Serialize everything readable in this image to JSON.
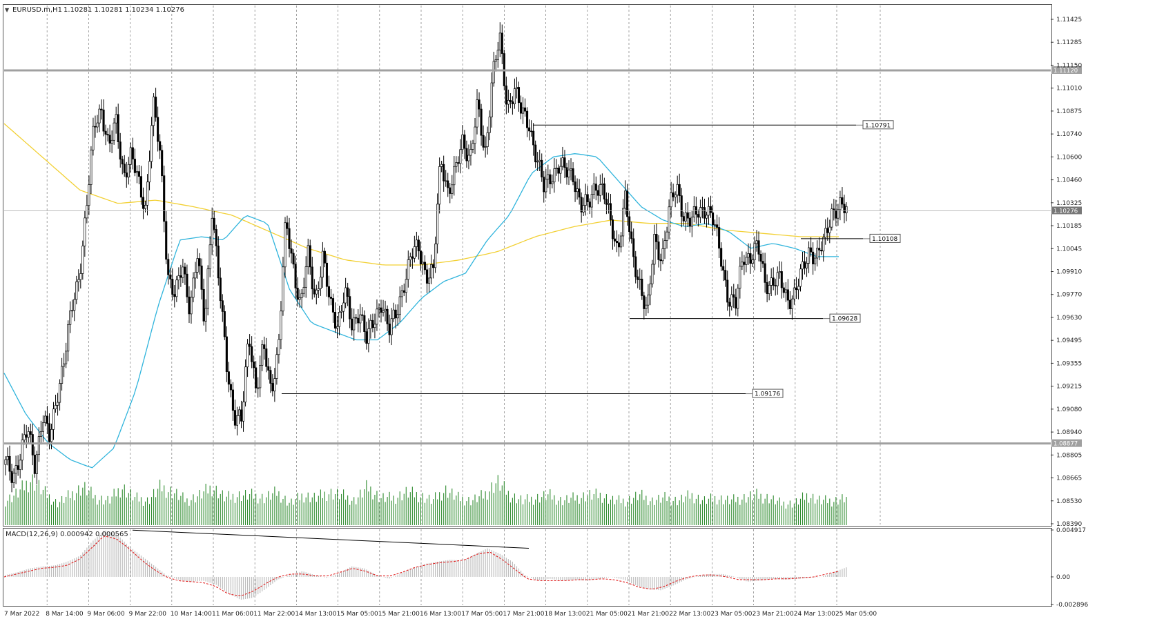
{
  "window": {
    "symbol_header": "EURUSD.m,H1",
    "ohlc_header": "1.10281 1.10281 1.10234 1.10276",
    "dropdown_glyph": "▼"
  },
  "colors": {
    "candles": "#000000",
    "ma_fast": "#2fb4dc",
    "ma_slow": "#f2d033",
    "volume": "#2e8b2e",
    "macd_hist": "#bdbdbd",
    "macd_signal": "#e02020",
    "grid": "#8a8a8a",
    "hline_gray": "#a0a0a0"
  },
  "chart_data": {
    "type": "candlestick",
    "price_axis_ticks": [
      "1.11425",
      "1.11285",
      "1.11150",
      "1.11010",
      "1.10875",
      "1.10740",
      "1.10600",
      "1.10460",
      "1.10325",
      "1.10185",
      "1.10045",
      "1.09910",
      "1.09770",
      "1.09630",
      "1.09495",
      "1.09355",
      "1.09215",
      "1.09080",
      "1.08940",
      "1.08805",
      "1.08665",
      "1.08530",
      "1.08390"
    ],
    "ylim": [
      1.0839,
      1.1151
    ],
    "macd_axis_ticks": [
      "0.004917",
      "0.00",
      "-0.002896"
    ],
    "macd_ylim": [
      -0.002896,
      0.004917
    ],
    "x_labels": [
      "7 Mar 2022",
      "8 Mar 14:00",
      "9 Mar 06:00",
      "9 Mar 22:00",
      "10 Mar 14:00",
      "11 Mar 06:00",
      "11 Mar 22:00",
      "14 Mar 13:00",
      "15 Mar 05:00",
      "15 Mar 21:00",
      "16 Mar 13:00",
      "17 Mar 05:00",
      "17 Mar 21:00",
      "18 Mar 13:00",
      "21 Mar 05:00",
      "21 Mar 21:00",
      "22 Mar 13:00",
      "23 Mar 05:00",
      "23 Mar 21:00",
      "24 Mar 13:00",
      "25 Mar 05:00"
    ],
    "price_path": [
      1.0875,
      1.0868,
      1.0882,
      1.0895,
      1.0875,
      1.0905,
      1.0889,
      1.0918,
      1.094,
      1.0968,
      1.099,
      1.103,
      1.1078,
      1.109,
      1.1065,
      1.108,
      1.105,
      1.106,
      1.1045,
      1.103,
      1.1092,
      1.106,
      1.099,
      1.0975,
      1.0995,
      1.097,
      1.1,
      1.096,
      1.103,
      1.098,
      1.0935,
      1.0905,
      1.09,
      1.0955,
      1.092,
      1.0945,
      1.092,
      1.0945,
      1.102,
      1.0995,
      1.097,
      1.1,
      1.0975,
      1.1,
      1.097,
      1.096,
      1.098,
      1.0955,
      1.097,
      1.095,
      1.096,
      1.0975,
      1.0955,
      1.0965,
      1.0985,
      1.1,
      1.1005,
      1.099,
      1.099,
      1.106,
      1.104,
      1.105,
      1.107,
      1.106,
      1.109,
      1.106,
      1.111,
      1.113,
      1.109,
      1.1102,
      1.1085,
      1.108,
      1.106,
      1.104,
      1.105,
      1.1055,
      1.105,
      1.105,
      1.103,
      1.103,
      1.1045,
      1.104,
      1.102,
      1.1005,
      1.1035,
      1.1,
      1.0985,
      1.0965,
      1.101,
      1.1,
      1.1028,
      1.1042,
      1.1025,
      1.102,
      1.1028,
      1.103,
      1.102,
      1.1,
      1.0975,
      1.097,
      1.1002,
      1.1,
      1.1005,
      1.0985,
      1.0985,
      1.0985,
      1.0975,
      1.0978,
      1.099,
      1.1005,
      1.1,
      1.1008,
      1.1028,
      1.103,
      1.1027
    ],
    "ma_fast_path": [
      1.093,
      1.0905,
      1.0888,
      1.0878,
      1.0873,
      1.0885,
      1.092,
      1.097,
      1.101,
      1.1012,
      1.101,
      1.1025,
      1.102,
      1.098,
      1.096,
      1.0955,
      1.095,
      1.095,
      1.096,
      1.0975,
      1.0985,
      1.099,
      1.101,
      1.1025,
      1.105,
      1.106,
      1.1062,
      1.106,
      1.1045,
      1.103,
      1.1022,
      1.1018,
      1.102,
      1.1015,
      1.1005,
      1.1008,
      1.1005,
      1.1,
      1.1
    ],
    "ma_slow_path": [
      1.108,
      1.106,
      1.104,
      1.1032,
      1.1034,
      1.103,
      1.1025,
      1.1015,
      1.1005,
      1.0998,
      1.0995,
      1.0995,
      1.0998,
      1.1003,
      1.1012,
      1.1018,
      1.1022,
      1.102,
      1.102,
      1.1016,
      1.1014,
      1.1012,
      1.1012
    ],
    "volume_path": [
      0.45,
      0.6,
      0.85,
      0.6,
      0.4,
      0.55,
      0.7,
      0.5,
      0.45,
      0.7,
      0.5,
      0.45,
      0.7,
      0.6,
      0.45,
      0.55,
      0.7,
      0.5,
      0.55,
      0.55,
      0.5,
      0.6,
      0.4,
      0.55,
      0.5,
      0.6,
      0.55,
      0.45,
      0.7,
      0.5,
      0.5,
      0.6,
      0.55,
      0.45,
      0.65,
      0.5,
      0.45,
      0.55,
      0.8,
      0.55,
      0.45,
      0.5,
      0.55,
      0.45,
      0.5,
      0.55,
      0.55,
      0.45,
      0.45,
      0.55,
      0.45,
      0.5,
      0.45,
      0.55,
      0.45,
      0.5,
      0.45,
      0.5,
      0.55,
      0.5,
      0.4,
      0.4,
      0.55,
      0.45,
      0.45,
      0.5
    ],
    "macd_hist_path": [
      0.0002,
      0.0005,
      0.0009,
      0.0011,
      0.0012,
      0.0016,
      0.0022,
      0.0037,
      0.0049,
      0.0045,
      0.0032,
      0.0022,
      0.0012,
      0.0002,
      -0.0003,
      -0.0005,
      -0.0004,
      -0.0008,
      -0.0017,
      -0.0024,
      -0.0022,
      -0.0013,
      -0.0003,
      0.0002,
      0.0006,
      0.0002,
      -0.0001,
      0.0004,
      0.0011,
      0.0009,
      0.0002,
      -0.0002,
      0.0004,
      0.0009,
      0.0014,
      0.0016,
      0.0018,
      0.0017,
      0.0024,
      0.003,
      0.0024,
      0.0016,
      0.0002,
      -0.0004,
      -0.0002,
      -0.0004,
      -0.0003,
      -0.0004,
      -0.0002,
      0.0,
      -0.0003,
      -0.0009,
      -0.0013,
      -0.0014,
      -0.0009,
      -0.0003,
      0.0001,
      0.0003,
      0.0003,
      0.0,
      -0.0005,
      -0.0004,
      -0.0002,
      -0.0003,
      -0.0002,
      -0.0001,
      0.0,
      0.0005,
      0.001
    ],
    "macd_signal_path": [
      0.0,
      0.0003,
      0.0006,
      0.0009,
      0.001,
      0.0012,
      0.0018,
      0.003,
      0.0043,
      0.004,
      0.003,
      0.0018,
      0.0008,
      0.0,
      -0.0004,
      -0.0005,
      -0.0006,
      -0.001,
      -0.0018,
      -0.002,
      -0.0015,
      -0.0007,
      0.0,
      0.0003,
      0.0003,
      0.0001,
      0.0001,
      0.0005,
      0.0009,
      0.0006,
      0.0001,
      0.0001,
      0.0005,
      0.001,
      0.0013,
      0.0015,
      0.0016,
      0.0018,
      0.0024,
      0.0026,
      0.0018,
      0.0008,
      -0.0002,
      -0.0004,
      -0.0004,
      -0.0004,
      -0.0003,
      -0.0003,
      -0.0002,
      -0.0003,
      -0.0006,
      -0.0011,
      -0.0013,
      -0.001,
      -0.0004,
      0.0,
      0.0002,
      0.0002,
      0.0,
      -0.0003,
      -0.0003,
      -0.0003,
      -0.0002,
      -0.0002,
      -0.0001,
      0.0,
      0.0003,
      0.0006
    ],
    "indicator_header": "MACD(12,26,9) 0.000942 0.000565",
    "horizontal_lines": [
      {
        "name": "resistance-line",
        "price": 1.1112,
        "label": "1.11120",
        "style": "gray"
      },
      {
        "name": "support-line",
        "price": 1.08877,
        "label": "1.08877",
        "style": "gray"
      },
      {
        "name": "current-price-line",
        "price": 1.10276,
        "label": "1.10276",
        "style": "thin"
      }
    ],
    "level_lines": [
      {
        "name": "level-1-10791",
        "price": 1.10791,
        "label": "1.10791"
      },
      {
        "name": "level-1-10108",
        "price": 1.10108,
        "label": "1.10108"
      },
      {
        "name": "level-1-09628",
        "price": 1.09628,
        "label": "1.09628"
      },
      {
        "name": "level-1-09176",
        "price": 1.09176,
        "label": "1.09176"
      }
    ]
  }
}
